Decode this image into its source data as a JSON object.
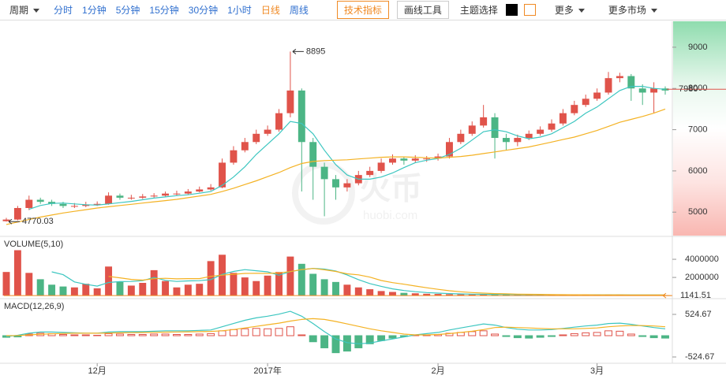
{
  "toolbar": {
    "period": "周期",
    "intervals": [
      "分时",
      "1分钟",
      "5分钟",
      "15分钟",
      "30分钟",
      "1小时",
      "日线",
      "周线"
    ],
    "selected": 6,
    "indicator_button": "技术指标",
    "drawing_button": "画线工具",
    "theme_label": "主题选择",
    "more": "更多",
    "more_markets": "更多市场"
  },
  "watermark": {
    "logo_text": "火币",
    "site": "huobi.com"
  },
  "chart_data": {
    "type": "candlestick",
    "up_color": "#e0534a",
    "down_color": "#4cb585",
    "categories": [
      null,
      null,
      null,
      null,
      null,
      null,
      null,
      null,
      "12月",
      null,
      null,
      null,
      null,
      null,
      null,
      null,
      null,
      null,
      null,
      null,
      null,
      null,
      null,
      "2017年",
      null,
      null,
      null,
      null,
      null,
      null,
      null,
      null,
      null,
      null,
      null,
      null,
      null,
      null,
      "2月",
      null,
      null,
      null,
      null,
      null,
      null,
      null,
      null,
      null,
      null,
      null,
      null,
      null,
      "3月",
      null,
      null,
      null,
      null,
      null,
      null
    ],
    "candles": {
      "open": [
        4780,
        4820,
        5100,
        5300,
        5250,
        5200,
        5150,
        5150,
        5180,
        5200,
        5400,
        5350,
        5350,
        5380,
        5400,
        5450,
        5450,
        5500,
        5550,
        5600,
        6200,
        6500,
        6700,
        6900,
        7000,
        7400,
        7950,
        6700,
        6100,
        5800,
        5600,
        5700,
        5900,
        6000,
        6200,
        6300,
        6250,
        6300,
        6300,
        6350,
        6700,
        6900,
        7100,
        7300,
        6800,
        6700,
        6800,
        6900,
        7000,
        7150,
        7400,
        7600,
        7750,
        7900,
        8250,
        8300,
        8000,
        7900,
        8000
      ],
      "high": [
        4860,
        5150,
        5400,
        5350,
        5300,
        5250,
        5220,
        5250,
        5260,
        5480,
        5450,
        5420,
        5440,
        5460,
        5500,
        5520,
        5560,
        5620,
        5680,
        6300,
        6600,
        6800,
        7000,
        7100,
        7500,
        8895,
        8000,
        6800,
        6200,
        5900,
        5800,
        6000,
        6100,
        6300,
        6400,
        6350,
        6380,
        6360,
        6420,
        6800,
        7000,
        7200,
        7600,
        7400,
        6900,
        6880,
        6980,
        7080,
        7250,
        7500,
        7700,
        7850,
        8000,
        8400,
        8380,
        8350,
        8100,
        8150,
        8050
      ],
      "low": [
        4770.03,
        4800,
        5050,
        5200,
        5150,
        5100,
        5100,
        5120,
        5150,
        5180,
        5300,
        5300,
        5320,
        5350,
        5380,
        5400,
        5420,
        5480,
        5520,
        5580,
        6150,
        6450,
        6650,
        6850,
        6950,
        7300,
        5500,
        5300,
        4900,
        5300,
        5500,
        5650,
        5850,
        5950,
        6150,
        6150,
        6200,
        6220,
        6250,
        6300,
        6650,
        6850,
        7050,
        6300,
        6500,
        6600,
        6750,
        6850,
        6950,
        7100,
        7350,
        7550,
        7700,
        7850,
        8150,
        7700,
        7600,
        7400,
        7850
      ],
      "close": [
        4820,
        5100,
        5300,
        5250,
        5200,
        5150,
        5150,
        5180,
        5200,
        5400,
        5350,
        5350,
        5380,
        5400,
        5450,
        5450,
        5500,
        5550,
        5600,
        6200,
        6500,
        6700,
        6900,
        7000,
        7400,
        7950,
        6700,
        6100,
        5800,
        5600,
        5700,
        5900,
        6000,
        6200,
        6300,
        6250,
        6300,
        6300,
        6350,
        6700,
        6900,
        7100,
        7300,
        6800,
        6700,
        6800,
        6900,
        7000,
        7150,
        7400,
        7600,
        7750,
        7900,
        8250,
        8300,
        8000,
        7900,
        8000,
        7950
      ]
    },
    "series": [
      {
        "color": "#3cc6c0",
        "values": [
          null,
          null,
          5070,
          5160,
          5210,
          5220,
          5200,
          5180,
          5170,
          5200,
          5230,
          5260,
          5300,
          5340,
          5370,
          5400,
          5420,
          5460,
          5500,
          5650,
          5850,
          6100,
          6400,
          6650,
          6900,
          7200,
          7150,
          6900,
          6500,
          6150,
          5900,
          5800,
          5800,
          5850,
          5950,
          6080,
          6200,
          6260,
          6300,
          6400,
          6550,
          6750,
          6950,
          7000,
          6950,
          6850,
          6780,
          6820,
          6900,
          7050,
          7200,
          7400,
          7550,
          7750,
          7950,
          8050,
          8050,
          8000,
          7980
        ]
      },
      {
        "color": "#f4b223",
        "values": [
          4700,
          4760,
          4820,
          4880,
          4930,
          4980,
          5020,
          5060,
          5100,
          5130,
          5160,
          5190,
          5220,
          5250,
          5280,
          5310,
          5350,
          5390,
          5430,
          5500,
          5580,
          5670,
          5760,
          5860,
          5960,
          6080,
          6180,
          6230,
          6250,
          6260,
          6270,
          6290,
          6310,
          6330,
          6340,
          6340,
          6330,
          6320,
          6310,
          6330,
          6350,
          6380,
          6420,
          6460,
          6500,
          6540,
          6580,
          6640,
          6700,
          6760,
          6820,
          6900,
          6980,
          7080,
          7180,
          7250,
          7320,
          7400,
          7500
        ]
      }
    ],
    "ylim": [
      4450,
      9610
    ],
    "yticks": [
      5000,
      6000,
      7000,
      8000,
      9000
    ],
    "last_price": {
      "value": 7980,
      "label": "7980"
    },
    "volume": {
      "title": "VOLUME(5,10)",
      "values": [
        2600000,
        5000000,
        2500000,
        1800000,
        1200000,
        1000000,
        900000,
        1300000,
        800000,
        3200000,
        1500000,
        1100000,
        1400000,
        2800000,
        1600000,
        900000,
        1200000,
        1300000,
        3800000,
        4500000,
        2500000,
        2000000,
        1600000,
        2200000,
        2600000,
        4300000,
        3500000,
        2400000,
        1800000,
        1500000,
        1200000,
        900000,
        700000,
        500000,
        400000,
        300000,
        250000,
        200000,
        180000,
        150000,
        130000,
        120000,
        110000,
        120000,
        100000,
        90000,
        90000,
        80000,
        80000,
        80000,
        70000,
        70000,
        70000,
        80000,
        70000,
        60000,
        60000,
        60000,
        50000
      ],
      "series": [
        {
          "color": "#3cc6c0",
          "values": [
            null,
            null,
            null,
            null,
            2620000,
            2300000,
            1500000,
            1240000,
            1040000,
            1440000,
            1540000,
            1560000,
            1640000,
            2000000,
            1680000,
            1560000,
            1620000,
            1640000,
            1760000,
            2340000,
            2660000,
            2860000,
            2740000,
            2620000,
            2240000,
            2640000,
            2840000,
            3000000,
            2920000,
            2700000,
            2280000,
            1760000,
            1320000,
            1020000,
            740000,
            560000,
            430000,
            330000,
            270000,
            220000,
            180000,
            160000,
            140000,
            130000,
            120000,
            110000,
            100000,
            90000,
            90000,
            80000,
            80000,
            80000,
            80000,
            80000,
            80000,
            70000,
            70000,
            70000,
            60000
          ]
        },
        {
          "color": "#f4b223",
          "values": [
            null,
            null,
            null,
            null,
            null,
            null,
            null,
            null,
            null,
            2110000,
            1960000,
            1780000,
            1700000,
            1860000,
            1900000,
            1840000,
            1870000,
            1870000,
            2120000,
            2250000,
            2350000,
            2440000,
            2460000,
            2440000,
            2500000,
            2640000,
            2870000,
            2990000,
            2840000,
            2660000,
            2400000,
            2290000,
            2030000,
            1660000,
            1430000,
            1250000,
            1050000,
            860000,
            690000,
            530000,
            420000,
            330000,
            270000,
            220000,
            190000,
            160000,
            140000,
            130000,
            110000,
            100000,
            90000,
            90000,
            80000,
            80000,
            80000,
            70000,
            70000,
            70000,
            60000
          ]
        }
      ],
      "ylim": [
        -250000,
        6350000
      ],
      "yticks": [
        2000000,
        4000000
      ],
      "last": 1141.51,
      "last_color": "#f08a24"
    },
    "macd": {
      "title": "MACD(12,26,9)",
      "histogram": [
        -40,
        -30,
        40,
        60,
        50,
        30,
        20,
        20,
        10,
        50,
        40,
        30,
        30,
        40,
        40,
        30,
        30,
        40,
        50,
        120,
        150,
        170,
        180,
        170,
        180,
        220,
        20,
        -150,
        -300,
        -420,
        -380,
        -300,
        -200,
        -120,
        -60,
        -20,
        10,
        20,
        30,
        60,
        80,
        100,
        120,
        40,
        -20,
        -50,
        -60,
        -40,
        -20,
        20,
        50,
        70,
        80,
        120,
        110,
        40,
        -20,
        -50,
        -60
      ],
      "series": [
        {
          "color": "#3cc6c0",
          "values": [
            -20,
            10,
            60,
            90,
            90,
            80,
            70,
            60,
            60,
            90,
            100,
            100,
            100,
            110,
            120,
            120,
            120,
            130,
            140,
            220,
            300,
            380,
            440,
            480,
            530,
            600,
            480,
            300,
            100,
            -80,
            -170,
            -200,
            -180,
            -130,
            -80,
            -30,
            20,
            50,
            80,
            140,
            190,
            240,
            290,
            260,
            200,
            160,
            140,
            140,
            150,
            180,
            210,
            240,
            260,
            300,
            310,
            280,
            240,
            200,
            170
          ]
        },
        {
          "color": "#f4b223",
          "values": [
            0,
            5,
            20,
            35,
            45,
            55,
            60,
            60,
            60,
            65,
            70,
            75,
            78,
            82,
            88,
            92,
            96,
            100,
            105,
            120,
            150,
            190,
            230,
            270,
            310,
            360,
            400,
            420,
            400,
            350,
            290,
            230,
            170,
            120,
            80,
            40,
            20,
            20,
            30,
            50,
            80,
            110,
            150,
            200,
            210,
            200,
            190,
            180,
            170,
            170,
            170,
            180,
            190,
            220,
            240,
            250,
            250,
            240,
            220
          ]
        }
      ],
      "ylim": [
        -660,
        894
      ],
      "yticks": [
        524.67,
        -524.67
      ]
    }
  }
}
